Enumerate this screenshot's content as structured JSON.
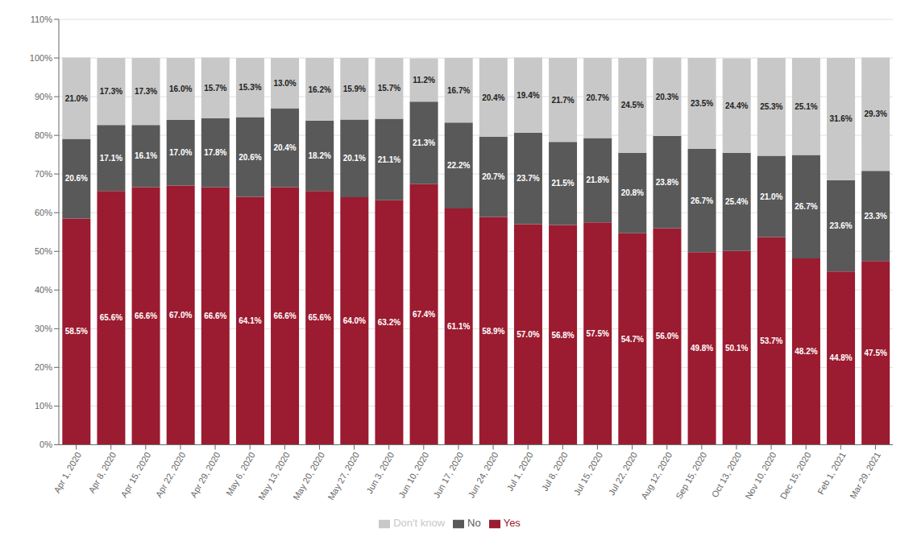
{
  "chart_data": {
    "type": "bar",
    "stacked": true,
    "data_labels": true,
    "grid": true,
    "legend": "bottom",
    "categories": [
      "Apr 1, 2020",
      "Apr 8, 2020",
      "Apr 15, 2020",
      "Apr 22, 2020",
      "Apr 29, 2020",
      "May 6, 2020",
      "May 13, 2020",
      "May 20, 2020",
      "May 27, 2020",
      "Jun 3, 2020",
      "Jun 10, 2020",
      "Jun 17, 2020",
      "Jun 24, 2020",
      "Jul 1, 2020",
      "Jul 8, 2020",
      "Jul 15, 2020",
      "Jul 22, 2020",
      "Aug 12, 2020",
      "Sep 15, 2020",
      "Oct 13, 2020",
      "Nov 10, 2020",
      "Dec 15, 2020",
      "Feb 1, 2021",
      "Mar 29, 2021"
    ],
    "series": [
      {
        "name": "Yes",
        "color": "#9B1B30",
        "values": [
          58.5,
          65.6,
          66.6,
          67.0,
          66.6,
          64.1,
          66.6,
          65.6,
          64.0,
          63.2,
          67.4,
          61.1,
          58.9,
          57.0,
          56.8,
          57.5,
          54.7,
          56.0,
          49.8,
          50.1,
          53.7,
          48.2,
          44.8,
          47.5
        ],
        "value_labels": [
          "58.5%",
          "65.6%",
          "66.6%",
          "67.0%",
          "66.6%",
          "64.1%",
          "66.6%",
          "65.6%",
          "64.0%",
          "63.2%",
          "67.4%",
          "61.1%",
          "58.9%",
          "57.0%",
          "56.8%",
          "57.5%",
          "54.7%",
          "56.0%",
          "49.8%",
          "50.1%",
          "53.7%",
          "48.2%",
          "44.8%",
          "47.5%"
        ]
      },
      {
        "name": "No",
        "color": "#595959",
        "values": [
          20.6,
          17.1,
          16.1,
          17.0,
          17.8,
          20.6,
          20.4,
          18.2,
          20.1,
          21.1,
          21.3,
          22.2,
          20.7,
          23.7,
          21.5,
          21.8,
          20.8,
          23.8,
          26.7,
          25.4,
          21.0,
          26.7,
          23.6,
          23.3
        ],
        "value_labels": [
          "20.6%",
          "17.1%",
          "16.1%",
          "17.0%",
          "17.8%",
          "20.6%",
          "20.4%",
          "18.2%",
          "20.1%",
          "21.1%",
          "21.3%",
          "22.2%",
          "20.7%",
          "23.7%",
          "21.5%",
          "21.8%",
          "20.8%",
          "23.8%",
          "26.7%",
          "25.4%",
          "21.0%",
          "26.7%",
          "23.6%",
          "23.3%"
        ]
      },
      {
        "name": "Don't know",
        "color": "#C8C8C8",
        "values": [
          21.0,
          17.3,
          17.3,
          16.0,
          15.7,
          15.3,
          13.0,
          16.2,
          15.9,
          15.7,
          11.2,
          16.7,
          20.4,
          19.4,
          21.7,
          20.7,
          24.5,
          20.3,
          23.5,
          24.4,
          25.3,
          25.1,
          31.6,
          29.3
        ],
        "value_labels": [
          "21.0%",
          "17.3%",
          "17.3%",
          "16.0%",
          "15.7%",
          "15.3%",
          "13.0%",
          "16.2%",
          "15.9%",
          "15.7%",
          "11.2%",
          "16.7%",
          "20.4%",
          "19.4%",
          "21.7%",
          "20.7%",
          "24.5%",
          "20.3%",
          "23.5%",
          "24.4%",
          "25.3%",
          "25.1%",
          "31.6%",
          "29.3%"
        ]
      }
    ],
    "ylim": [
      0,
      110
    ],
    "yticks": [
      {
        "value": 0,
        "label": "0%"
      },
      {
        "value": 10,
        "label": "10%"
      },
      {
        "value": 20,
        "label": "20%"
      },
      {
        "value": 30,
        "label": "30%"
      },
      {
        "value": 40,
        "label": "40%"
      },
      {
        "value": 50,
        "label": "50%"
      },
      {
        "value": 60,
        "label": "60%"
      },
      {
        "value": 70,
        "label": "70%"
      },
      {
        "value": 80,
        "label": "80%"
      },
      {
        "value": 90,
        "label": "90%"
      },
      {
        "value": 100,
        "label": "100%"
      },
      {
        "value": 110,
        "label": "110%"
      }
    ]
  }
}
